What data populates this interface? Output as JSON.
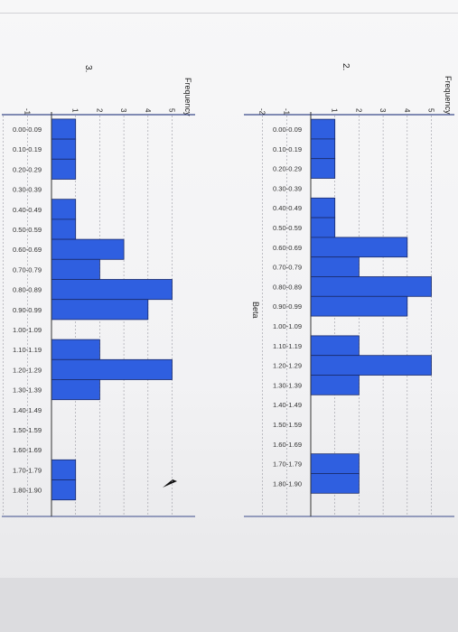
{
  "left_panel": {
    "number_label": "3.",
    "frequency_label": "Frequency",
    "tick_labels": [
      "-1",
      "1",
      "2",
      "3",
      "4",
      "5"
    ],
    "category_labels": [
      "0.00-0.09",
      "0.10-0.19",
      "0.20-0.29",
      "0.30-0.39",
      "0.40-0.49",
      "0.50-0.59",
      "0.60-0.69",
      "0.70-0.79",
      "0.80-0.89",
      "0.90-0.99",
      "1.00-1.09",
      "1.10-1.19",
      "1.20-1.29",
      "1.30-1.39",
      "1.40-1.49",
      "1.50-1.59",
      "1.60-1.69",
      "1.70-1.79",
      "1.80-1.90"
    ]
  },
  "right_panel": {
    "number_label": "2.",
    "frequency_label": "Frequency",
    "beta_label": "Beta",
    "tick_labels": [
      "-2",
      "-1",
      "1",
      "2",
      "3",
      "4",
      "5"
    ],
    "category_labels": [
      "0.00-0.09",
      "0.10-0.19",
      "0.20-0.29",
      "0.30-0.39",
      "0.40-0.49",
      "0.50-0.59",
      "0.60-0.69",
      "0.70-0.79",
      "0.80-0.89",
      "0.90-0.99",
      "1.00-1.09",
      "1.10-1.19",
      "1.20-1.29",
      "1.30-1.39",
      "1.40-1.49",
      "1.50-1.59",
      "1.60-1.69",
      "1.70-1.79",
      "1.80-1.90"
    ]
  },
  "colors": {
    "bar": "#2f5fe0",
    "bar_stroke": "#1a2a6a",
    "frame": "#3b4a8a",
    "grid": "#9a9aa3"
  },
  "chart_data": [
    {
      "type": "bar",
      "orientation": "horizontal",
      "categories": [
        "0.00-0.09",
        "0.10-0.19",
        "0.20-0.29",
        "0.30-0.39",
        "0.40-0.49",
        "0.50-0.59",
        "0.60-0.69",
        "0.70-0.79",
        "0.80-0.89",
        "0.90-0.99",
        "1.00-1.09",
        "1.10-1.19",
        "1.20-1.29",
        "1.30-1.39",
        "1.40-1.49",
        "1.50-1.59",
        "1.60-1.69",
        "1.70-1.79",
        "1.80-1.90"
      ],
      "values": [
        1,
        1,
        1,
        0,
        1,
        1,
        3,
        2,
        5,
        4,
        0,
        2,
        5,
        2,
        0,
        0,
        0,
        1,
        1
      ],
      "xlabel": "Frequency",
      "xlim": [
        -2,
        6
      ],
      "grid": true
    },
    {
      "type": "bar",
      "orientation": "horizontal",
      "categories": [
        "0.00-0.09",
        "0.10-0.19",
        "0.20-0.29",
        "0.30-0.39",
        "0.40-0.49",
        "0.50-0.59",
        "0.60-0.69",
        "0.70-0.79",
        "0.80-0.89",
        "0.90-0.99",
        "1.00-1.09",
        "1.10-1.19",
        "1.20-1.29",
        "1.30-1.39",
        "1.40-1.49",
        "1.50-1.59",
        "1.60-1.69",
        "1.70-1.79",
        "1.80-1.90"
      ],
      "values": [
        1,
        1,
        1,
        0,
        1,
        1,
        4,
        2,
        5,
        4,
        0,
        2,
        5,
        2,
        0,
        0,
        0,
        2,
        2
      ],
      "xlabel": "Frequency",
      "ylabel": "Beta",
      "xlim": [
        -2,
        6
      ],
      "grid": true
    }
  ]
}
